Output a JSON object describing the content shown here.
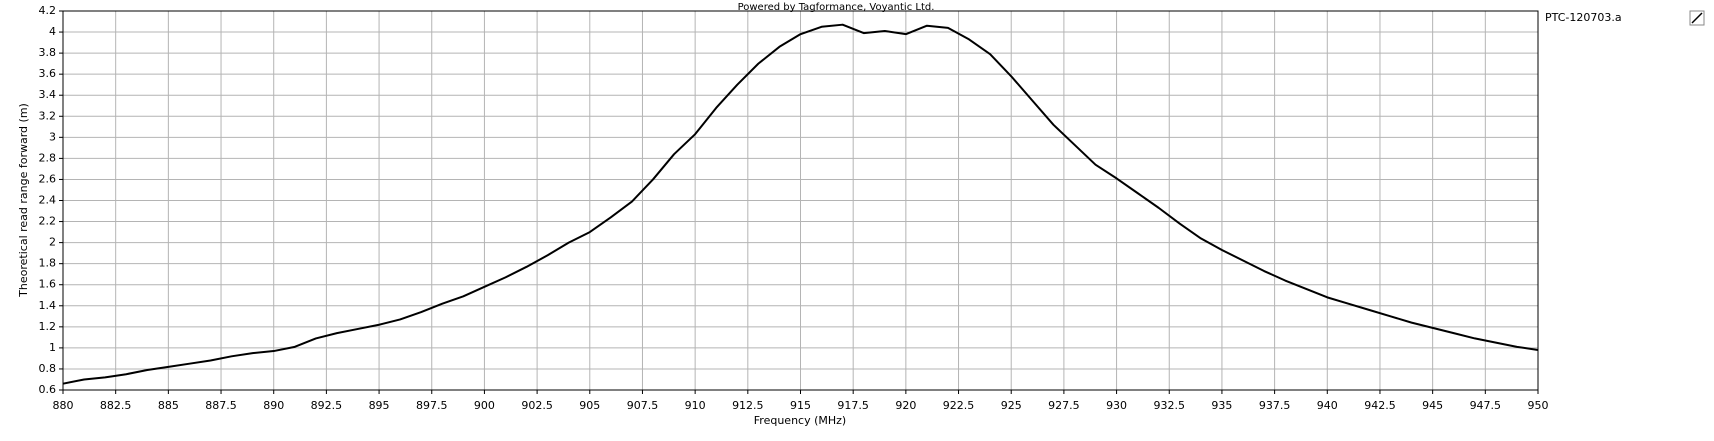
{
  "chart_data": {
    "type": "line",
    "title": "Powered by Tagformance, Voyantic Ltd.",
    "x_label": "Frequency (MHz)",
    "y_label": "Theoretical read range forward (m)",
    "x": [
      880,
      881,
      882,
      883,
      884,
      885,
      886,
      887,
      888,
      889,
      890,
      891,
      892,
      893,
      894,
      895,
      896,
      897,
      898,
      899,
      900,
      901,
      902,
      903,
      904,
      905,
      906,
      907,
      908,
      909,
      910,
      911,
      912,
      913,
      914,
      915,
      916,
      917,
      918,
      919,
      920,
      921,
      922,
      923,
      924,
      925,
      926,
      927,
      928,
      929,
      930,
      931,
      932,
      933,
      934,
      935,
      936,
      937,
      938,
      939,
      940,
      941,
      942,
      943,
      944,
      945,
      946,
      947,
      948,
      949,
      950
    ],
    "series": [
      {
        "name": "PTC-120703.a",
        "color": "#000000",
        "values": [
          0.66,
          0.7,
          0.72,
          0.75,
          0.79,
          0.82,
          0.85,
          0.88,
          0.92,
          0.95,
          0.97,
          1.01,
          1.09,
          1.14,
          1.18,
          1.22,
          1.27,
          1.34,
          1.42,
          1.49,
          1.58,
          1.67,
          1.77,
          1.88,
          2.0,
          2.1,
          2.24,
          2.39,
          2.6,
          2.84,
          3.03,
          3.28,
          3.5,
          3.7,
          3.86,
          3.98,
          4.05,
          4.07,
          3.99,
          4.01,
          3.98,
          4.06,
          4.04,
          3.93,
          3.79,
          3.58,
          3.35,
          3.12,
          2.93,
          2.74,
          2.61,
          2.47,
          2.33,
          2.18,
          2.04,
          1.93,
          1.83,
          1.73,
          1.64,
          1.56,
          1.48,
          1.42,
          1.36,
          1.3,
          1.24,
          1.19,
          1.14,
          1.09,
          1.05,
          1.01,
          0.98
        ]
      }
    ],
    "xlim": [
      880,
      950
    ],
    "xticks": [
      880,
      882.5,
      885,
      887.5,
      890,
      892.5,
      895,
      897.5,
      900,
      902.5,
      905,
      907.5,
      910,
      912.5,
      915,
      917.5,
      920,
      922.5,
      925,
      927.5,
      930,
      932.5,
      935,
      937.5,
      940,
      942.5,
      945,
      947.5,
      950
    ],
    "ylim": [
      0.6,
      4.2
    ],
    "yticks": [
      0.6,
      0.8,
      1,
      1.2,
      1.4,
      1.6,
      1.8,
      2,
      2.2,
      2.4,
      2.6,
      2.8,
      3,
      3.2,
      3.4,
      3.6,
      3.8,
      4,
      4.2
    ],
    "grid": true
  }
}
